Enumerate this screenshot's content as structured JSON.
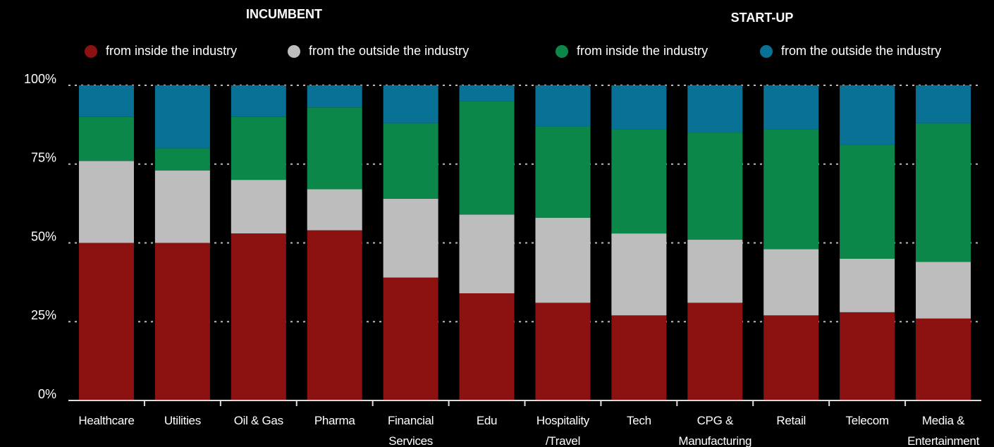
{
  "chart_data": {
    "type": "stacked_bar",
    "annotations": [
      "INCUMBENT",
      "START-UP"
    ],
    "categories": [
      "Healthcare",
      "Utilities",
      "Oil & Gas",
      "Pharma",
      "Financial Services",
      "Edu",
      "Hospitality /Travel",
      "Tech",
      "CPG & Manufacturing",
      "Retail",
      "Telecom",
      "Media & Entertainment"
    ],
    "series": [
      {
        "name": "from inside the industry",
        "color": "#8c1111",
        "values": [
          50,
          50,
          53,
          54,
          39,
          34,
          31,
          27,
          31,
          27,
          28,
          26
        ]
      },
      {
        "name": "from the outside the industry",
        "color": "#bdbdbd",
        "values": [
          26,
          23,
          17,
          13,
          25,
          25,
          27,
          26,
          20,
          21,
          17,
          18
        ]
      },
      {
        "name": "from inside the industry",
        "color": "#0c874a",
        "values": [
          14,
          7,
          20,
          26,
          24,
          36,
          29,
          33,
          34,
          38,
          36,
          44
        ]
      },
      {
        "name": "from the outside the industry",
        "color": "#0a7196",
        "values": [
          10,
          20,
          10,
          7,
          12,
          5,
          13,
          14,
          15,
          14,
          19,
          12
        ]
      }
    ],
    "ylim": [
      0,
      100
    ],
    "yticks": [
      {
        "value": 0,
        "label": "0%"
      },
      {
        "value": 25,
        "label": "25%"
      },
      {
        "value": 50,
        "label": "50%"
      },
      {
        "value": 75,
        "label": "75%"
      },
      {
        "value": 100,
        "label": "100%"
      }
    ],
    "grid": true
  }
}
